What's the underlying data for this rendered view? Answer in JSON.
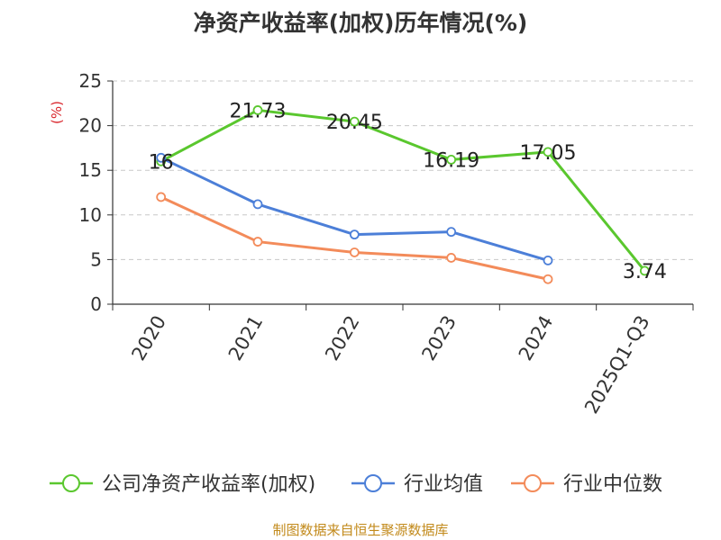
{
  "title": "净资产收益率(加权)历年情况(%)",
  "footer": "制图数据来自恒生聚源数据库",
  "chart_data": {
    "type": "line",
    "title": "净资产收益率(加权)历年情况(%)",
    "xlabel": "",
    "ylabel": "(%)",
    "ylim": [
      0,
      25
    ],
    "yticks": [
      0,
      5,
      10,
      15,
      20,
      25
    ],
    "grid": true,
    "legend_position": "bottom",
    "categories": [
      "2020",
      "2021",
      "2022",
      "2023",
      "2024",
      "2025Q1-Q3"
    ],
    "series": [
      {
        "name": "公司净资产收益率(加权)",
        "color": "#5ac72e",
        "values": [
          16,
          21.73,
          20.45,
          16.19,
          17.05,
          3.74
        ],
        "labels": [
          "16",
          "21.73",
          "20.45",
          "16.19",
          "17.05",
          "3.74"
        ]
      },
      {
        "name": "行业均值",
        "color": "#4c7fd8",
        "values": [
          16.4,
          11.2,
          7.8,
          8.1,
          4.9,
          null
        ]
      },
      {
        "name": "行业中位数",
        "color": "#f38b5a",
        "values": [
          12.0,
          7.0,
          5.8,
          5.2,
          2.8,
          null
        ]
      }
    ]
  }
}
